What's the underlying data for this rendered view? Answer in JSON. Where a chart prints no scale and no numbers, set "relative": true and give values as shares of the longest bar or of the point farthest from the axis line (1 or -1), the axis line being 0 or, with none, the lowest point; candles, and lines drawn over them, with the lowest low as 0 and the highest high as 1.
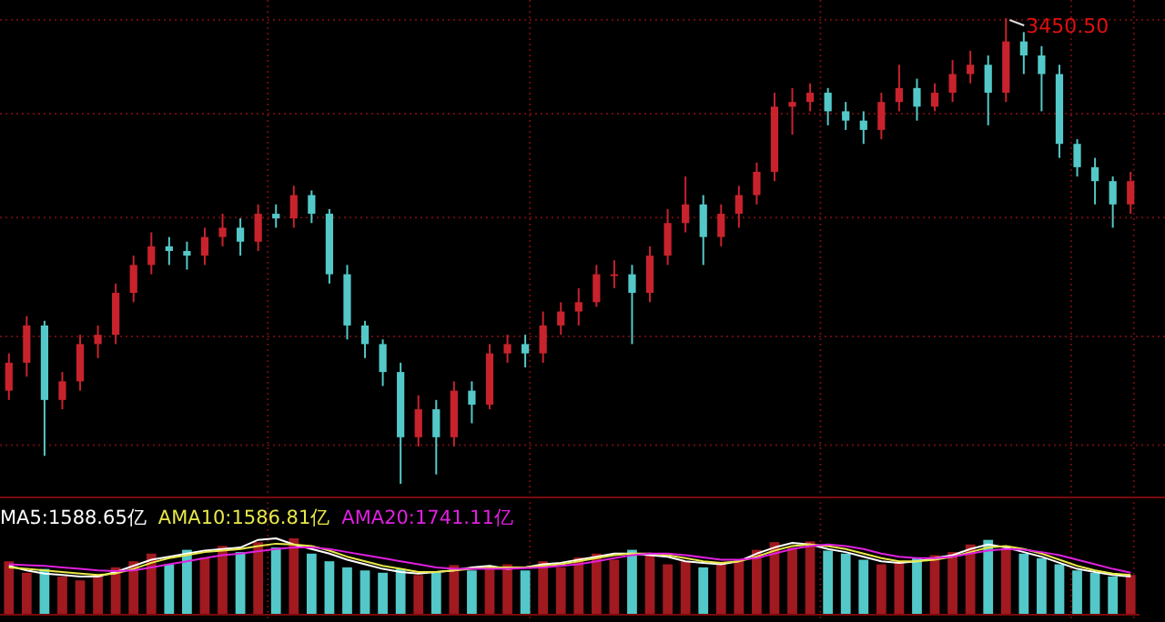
{
  "chart_data": [
    {
      "type": "candlestick",
      "relative": true,
      "grid": true,
      "categories": [
        null,
        null,
        null,
        null,
        null,
        null,
        null,
        null,
        null,
        null,
        null,
        null,
        null,
        null,
        null,
        null,
        null,
        null,
        null,
        null,
        null,
        null,
        null,
        null,
        null,
        null,
        null,
        null,
        null,
        null,
        null,
        null,
        null,
        null,
        null,
        null,
        null,
        null,
        null,
        null,
        null,
        null,
        null,
        null,
        null,
        null,
        null,
        null,
        null,
        null,
        null,
        null,
        null,
        null,
        null,
        null,
        null,
        null,
        null,
        null,
        null,
        null,
        null,
        null
      ],
      "ohlc": [
        [
          0.2,
          0.28,
          0.18,
          0.26
        ],
        [
          0.26,
          0.36,
          0.23,
          0.34
        ],
        [
          0.34,
          0.35,
          0.06,
          0.18
        ],
        [
          0.18,
          0.24,
          0.16,
          0.22
        ],
        [
          0.22,
          0.32,
          0.2,
          0.3
        ],
        [
          0.3,
          0.34,
          0.27,
          0.32
        ],
        [
          0.32,
          0.43,
          0.3,
          0.41
        ],
        [
          0.41,
          0.49,
          0.39,
          0.47
        ],
        [
          0.47,
          0.54,
          0.45,
          0.51
        ],
        [
          0.51,
          0.53,
          0.47,
          0.5
        ],
        [
          0.5,
          0.52,
          0.46,
          0.49
        ],
        [
          0.49,
          0.55,
          0.47,
          0.53
        ],
        [
          0.53,
          0.58,
          0.51,
          0.55
        ],
        [
          0.55,
          0.57,
          0.49,
          0.52
        ],
        [
          0.52,
          0.6,
          0.5,
          0.58
        ],
        [
          0.58,
          0.6,
          0.55,
          0.57
        ],
        [
          0.57,
          0.64,
          0.55,
          0.62
        ],
        [
          0.62,
          0.63,
          0.56,
          0.58
        ],
        [
          0.58,
          0.59,
          0.43,
          0.45
        ],
        [
          0.45,
          0.47,
          0.31,
          0.34
        ],
        [
          0.34,
          0.35,
          0.27,
          0.3
        ],
        [
          0.3,
          0.31,
          0.21,
          0.24
        ],
        [
          0.24,
          0.26,
          0.0,
          0.1
        ],
        [
          0.1,
          0.19,
          0.08,
          0.16
        ],
        [
          0.16,
          0.18,
          0.02,
          0.1
        ],
        [
          0.1,
          0.22,
          0.08,
          0.2
        ],
        [
          0.2,
          0.22,
          0.13,
          0.17
        ],
        [
          0.17,
          0.3,
          0.16,
          0.28
        ],
        [
          0.28,
          0.32,
          0.26,
          0.3
        ],
        [
          0.3,
          0.32,
          0.25,
          0.28
        ],
        [
          0.28,
          0.37,
          0.26,
          0.34
        ],
        [
          0.34,
          0.39,
          0.32,
          0.37
        ],
        [
          0.37,
          0.42,
          0.34,
          0.39
        ],
        [
          0.39,
          0.47,
          0.38,
          0.45
        ],
        [
          0.45,
          0.48,
          0.42,
          0.45
        ],
        [
          0.45,
          0.47,
          0.3,
          0.41
        ],
        [
          0.41,
          0.51,
          0.39,
          0.49
        ],
        [
          0.49,
          0.59,
          0.47,
          0.56
        ],
        [
          0.56,
          0.66,
          0.54,
          0.6
        ],
        [
          0.6,
          0.62,
          0.47,
          0.53
        ],
        [
          0.53,
          0.6,
          0.51,
          0.58
        ],
        [
          0.58,
          0.64,
          0.55,
          0.62
        ],
        [
          0.62,
          0.69,
          0.6,
          0.67
        ],
        [
          0.67,
          0.84,
          0.65,
          0.81
        ],
        [
          0.81,
          0.85,
          0.75,
          0.82
        ],
        [
          0.82,
          0.86,
          0.8,
          0.84
        ],
        [
          0.84,
          0.85,
          0.77,
          0.8
        ],
        [
          0.8,
          0.82,
          0.76,
          0.78
        ],
        [
          0.78,
          0.8,
          0.73,
          0.76
        ],
        [
          0.76,
          0.84,
          0.74,
          0.82
        ],
        [
          0.82,
          0.9,
          0.8,
          0.85
        ],
        [
          0.85,
          0.87,
          0.78,
          0.81
        ],
        [
          0.81,
          0.86,
          0.8,
          0.84
        ],
        [
          0.84,
          0.91,
          0.82,
          0.88
        ],
        [
          0.88,
          0.93,
          0.86,
          0.9
        ],
        [
          0.9,
          0.92,
          0.77,
          0.84
        ],
        [
          0.84,
          1.0,
          0.82,
          0.95
        ],
        [
          0.95,
          0.97,
          0.88,
          0.92
        ],
        [
          0.92,
          0.94,
          0.8,
          0.88
        ],
        [
          0.88,
          0.9,
          0.7,
          0.73
        ],
        [
          0.73,
          0.74,
          0.66,
          0.68
        ],
        [
          0.68,
          0.7,
          0.6,
          0.65
        ],
        [
          0.65,
          0.66,
          0.55,
          0.6
        ],
        [
          0.6,
          0.67,
          0.58,
          0.65
        ]
      ],
      "colors": [
        "#c8232c",
        "#c8232c",
        "#54c8c8",
        "#c8232c",
        "#c8232c",
        "#c8232c",
        "#c8232c",
        "#c8232c",
        "#c8232c",
        "#54c8c8",
        "#54c8c8",
        "#c8232c",
        "#c8232c",
        "#54c8c8",
        "#c8232c",
        "#54c8c8",
        "#c8232c",
        "#54c8c8",
        "#54c8c8",
        "#54c8c8",
        "#54c8c8",
        "#54c8c8",
        "#54c8c8",
        "#c8232c",
        "#54c8c8",
        "#c8232c",
        "#54c8c8",
        "#c8232c",
        "#c8232c",
        "#54c8c8",
        "#c8232c",
        "#c8232c",
        "#c8232c",
        "#c8232c",
        "#c8232c",
        "#54c8c8",
        "#c8232c",
        "#c8232c",
        "#c8232c",
        "#54c8c8",
        "#c8232c",
        "#c8232c",
        "#c8232c",
        "#c8232c",
        "#c8232c",
        "#c8232c",
        "#54c8c8",
        "#54c8c8",
        "#54c8c8",
        "#c8232c",
        "#c8232c",
        "#54c8c8",
        "#c8232c",
        "#c8232c",
        "#c8232c",
        "#54c8c8",
        "#c8232c",
        "#54c8c8",
        "#54c8c8",
        "#54c8c8",
        "#54c8c8",
        "#54c8c8",
        "#54c8c8",
        "#c8232c"
      ],
      "annotations": [
        "3450.50"
      ]
    },
    {
      "type": "bar",
      "relative": true,
      "grid": "x",
      "categories": [
        null,
        null,
        null,
        null,
        null,
        null,
        null,
        null,
        null,
        null,
        null,
        null,
        null,
        null,
        null,
        null,
        null,
        null,
        null,
        null,
        null,
        null,
        null,
        null,
        null,
        null,
        null,
        null,
        null,
        null,
        null,
        null,
        null,
        null,
        null,
        null,
        null,
        null,
        null,
        null,
        null,
        null,
        null,
        null,
        null,
        null,
        null,
        null,
        null,
        null,
        null,
        null,
        null,
        null,
        null,
        null,
        null,
        null,
        null,
        null,
        null,
        null,
        null,
        null
      ],
      "series": [
        {
          "type": "bar",
          "values": [
            0.7,
            0.55,
            0.6,
            0.5,
            0.45,
            0.52,
            0.62,
            0.7,
            0.8,
            0.66,
            0.85,
            0.75,
            0.9,
            0.82,
            0.95,
            0.88,
            1.0,
            0.8,
            0.7,
            0.62,
            0.58,
            0.55,
            0.6,
            0.52,
            0.55,
            0.65,
            0.58,
            0.62,
            0.66,
            0.58,
            0.7,
            0.62,
            0.75,
            0.8,
            0.72,
            0.85,
            0.78,
            0.66,
            0.7,
            0.62,
            0.68,
            0.72,
            0.85,
            0.95,
            0.88,
            0.96,
            0.84,
            0.8,
            0.72,
            0.66,
            0.7,
            0.74,
            0.78,
            0.82,
            0.92,
            0.98,
            0.86,
            0.8,
            0.74,
            0.66,
            0.58,
            0.55,
            0.5,
            0.52
          ],
          "colors": [
            "#a01a20",
            "#a01a20",
            "#54c8c8",
            "#a01a20",
            "#a01a20",
            "#a01a20",
            "#a01a20",
            "#a01a20",
            "#a01a20",
            "#54c8c8",
            "#54c8c8",
            "#a01a20",
            "#a01a20",
            "#54c8c8",
            "#a01a20",
            "#54c8c8",
            "#a01a20",
            "#54c8c8",
            "#54c8c8",
            "#54c8c8",
            "#54c8c8",
            "#54c8c8",
            "#54c8c8",
            "#a01a20",
            "#54c8c8",
            "#a01a20",
            "#54c8c8",
            "#a01a20",
            "#a01a20",
            "#54c8c8",
            "#a01a20",
            "#a01a20",
            "#a01a20",
            "#a01a20",
            "#a01a20",
            "#54c8c8",
            "#a01a20",
            "#a01a20",
            "#a01a20",
            "#54c8c8",
            "#a01a20",
            "#a01a20",
            "#a01a20",
            "#a01a20",
            "#a01a20",
            "#a01a20",
            "#54c8c8",
            "#54c8c8",
            "#54c8c8",
            "#a01a20",
            "#a01a20",
            "#54c8c8",
            "#a01a20",
            "#a01a20",
            "#a01a20",
            "#54c8c8",
            "#a01a20",
            "#54c8c8",
            "#54c8c8",
            "#54c8c8",
            "#54c8c8",
            "#54c8c8",
            "#54c8c8",
            "#a01a20"
          ]
        }
      ]
    },
    {
      "type": "line",
      "relative": true,
      "categories": [
        null,
        null,
        null,
        null,
        null,
        null,
        null,
        null,
        null,
        null,
        null,
        null,
        null,
        null,
        null,
        null,
        null,
        null,
        null,
        null,
        null,
        null,
        null,
        null,
        null,
        null,
        null,
        null,
        null,
        null,
        null,
        null,
        null,
        null,
        null,
        null,
        null,
        null,
        null,
        null,
        null,
        null,
        null,
        null,
        null,
        null,
        null,
        null,
        null,
        null,
        null,
        null,
        null,
        null,
        null,
        null,
        null,
        null,
        null,
        null,
        null,
        null,
        null,
        null
      ],
      "series": [
        {
          "name": "MA5:1588.65亿",
          "color": "#ffffff",
          "values": [
            0.64,
            0.58,
            0.54,
            0.52,
            0.5,
            0.5,
            0.56,
            0.64,
            0.72,
            0.76,
            0.8,
            0.84,
            0.86,
            0.88,
            0.98,
            1.0,
            0.92,
            0.86,
            0.8,
            0.72,
            0.66,
            0.6,
            0.56,
            0.54,
            0.56,
            0.58,
            0.62,
            0.64,
            0.6,
            0.62,
            0.66,
            0.68,
            0.72,
            0.76,
            0.8,
            0.8,
            0.78,
            0.76,
            0.7,
            0.68,
            0.66,
            0.7,
            0.8,
            0.88,
            0.94,
            0.92,
            0.86,
            0.82,
            0.76,
            0.7,
            0.68,
            0.7,
            0.74,
            0.78,
            0.86,
            0.92,
            0.88,
            0.82,
            0.76,
            0.68,
            0.6,
            0.56,
            0.52,
            0.5
          ]
        },
        {
          "name": "AMA10:1586.81亿",
          "color": "#e8e84a",
          "values": [
            0.62,
            0.6,
            0.58,
            0.56,
            0.54,
            0.52,
            0.54,
            0.6,
            0.68,
            0.74,
            0.78,
            0.82,
            0.84,
            0.86,
            0.9,
            0.93,
            0.92,
            0.9,
            0.84,
            0.76,
            0.7,
            0.64,
            0.6,
            0.56,
            0.56,
            0.58,
            0.6,
            0.62,
            0.62,
            0.62,
            0.64,
            0.66,
            0.7,
            0.74,
            0.78,
            0.8,
            0.8,
            0.78,
            0.74,
            0.7,
            0.68,
            0.7,
            0.76,
            0.84,
            0.9,
            0.92,
            0.9,
            0.86,
            0.8,
            0.74,
            0.7,
            0.7,
            0.72,
            0.76,
            0.82,
            0.88,
            0.9,
            0.86,
            0.8,
            0.72,
            0.64,
            0.58,
            0.54,
            0.52
          ]
        },
        {
          "name": "AMA20:1741.11亿",
          "color": "#e020e0",
          "values": [
            0.66,
            0.65,
            0.64,
            0.62,
            0.6,
            0.58,
            0.57,
            0.58,
            0.62,
            0.66,
            0.7,
            0.74,
            0.78,
            0.8,
            0.83,
            0.86,
            0.88,
            0.88,
            0.86,
            0.82,
            0.78,
            0.74,
            0.7,
            0.66,
            0.62,
            0.6,
            0.6,
            0.6,
            0.6,
            0.61,
            0.62,
            0.64,
            0.66,
            0.7,
            0.74,
            0.78,
            0.8,
            0.8,
            0.78,
            0.75,
            0.72,
            0.72,
            0.74,
            0.8,
            0.86,
            0.9,
            0.92,
            0.9,
            0.86,
            0.8,
            0.76,
            0.74,
            0.74,
            0.76,
            0.8,
            0.84,
            0.86,
            0.85,
            0.82,
            0.78,
            0.72,
            0.66,
            0.6,
            0.55
          ]
        }
      ]
    }
  ]
}
